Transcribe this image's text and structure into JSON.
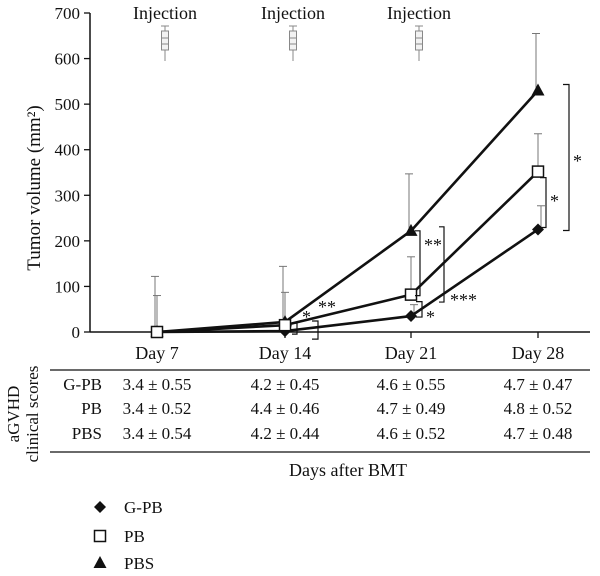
{
  "chart_data": {
    "type": "line",
    "ylabel": "Tumor volume (mm²)",
    "ylim": [
      0,
      700
    ],
    "yticks": [
      0,
      100,
      200,
      300,
      400,
      500,
      600,
      700
    ],
    "x": [
      "Day 7",
      "Day 14",
      "Day 21",
      "Day 28"
    ],
    "injections": {
      "label": "Injection",
      "at": [
        "Day 7",
        "Day 14",
        "Day 21"
      ]
    },
    "series": [
      {
        "name": "G-PB",
        "marker": "diamond",
        "values": [
          0,
          2,
          35,
          225
        ],
        "errors": [
          0,
          12,
          25,
          52
        ]
      },
      {
        "name": "PB",
        "marker": "square",
        "values": [
          0,
          15,
          82,
          352
        ],
        "errors": [
          80,
          72,
          83,
          83
        ]
      },
      {
        "name": "PBS",
        "marker": "triangle",
        "values": [
          0,
          22,
          222,
          530
        ],
        "errors": [
          122,
          122,
          125,
          125
        ]
      }
    ],
    "significance": [
      {
        "label": "*",
        "at": "Day 14",
        "between": [
          "G-PB",
          "PB"
        ]
      },
      {
        "label": "**",
        "at": "Day 14",
        "between": [
          "G-PB",
          "PBS"
        ]
      },
      {
        "label": "**",
        "at": "Day 21",
        "between": [
          "PB",
          "PBS"
        ]
      },
      {
        "label": "*",
        "at": "Day 21",
        "between": [
          "G-PB",
          "PB"
        ]
      },
      {
        "label": "***",
        "at": "Day 21",
        "between": [
          "G-PB",
          "PBS"
        ]
      },
      {
        "label": "*",
        "at": "Day 28",
        "between": [
          "G-PB",
          "PB"
        ]
      },
      {
        "label": "*",
        "at": "Day 28",
        "between": [
          "PB",
          "PBS"
        ]
      }
    ],
    "grid": false
  },
  "table": {
    "side_label_line1": "aGVHD",
    "side_label_line2": "clinical scores",
    "rows": [
      {
        "group": "G-PB",
        "values": [
          "3.4 ± 0.55",
          "4.2 ± 0.45",
          "4.6 ± 0.55",
          "4.7 ± 0.47"
        ]
      },
      {
        "group": "PB",
        "values": [
          "3.4 ± 0.52",
          "4.4 ± 0.46",
          "4.7 ± 0.49",
          "4.8 ± 0.52"
        ]
      },
      {
        "group": "PBS",
        "values": [
          "3.4 ± 0.54",
          "4.2 ± 0.44",
          "4.6 ± 0.52",
          "4.7 ± 0.48"
        ]
      }
    ],
    "x_title": "Days after BMT"
  },
  "legend": [
    {
      "label": "G-PB",
      "marker": "diamond"
    },
    {
      "label": "PB",
      "marker": "square"
    },
    {
      "label": "PBS",
      "marker": "triangle"
    }
  ]
}
